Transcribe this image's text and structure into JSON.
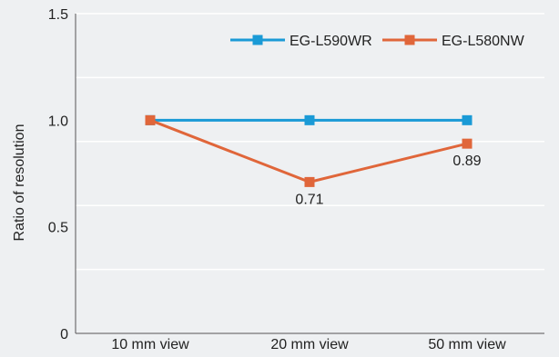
{
  "chart_data": {
    "type": "line",
    "title": "",
    "xlabel": "",
    "ylabel": "Ratio of resolution",
    "categories": [
      "10 mm view",
      "20 mm view",
      "50 mm view"
    ],
    "ylim": [
      0,
      1.5
    ],
    "yticks": [
      0,
      0.5,
      1.0,
      1.5
    ],
    "ytick_labels": [
      "0",
      "0.5",
      "1.0",
      "1.5"
    ],
    "grid": true,
    "legend_position": "top-right",
    "series": [
      {
        "name": "EG-L590WR",
        "values": [
          1.0,
          1.0,
          1.0
        ],
        "color": "#1a9ad6",
        "marker": "square",
        "point_labels": [
          "",
          "",
          ""
        ]
      },
      {
        "name": "EG-L580NW",
        "values": [
          1.0,
          0.71,
          0.89
        ],
        "color": "#e0663a",
        "marker": "square",
        "point_labels": [
          "",
          "0.71",
          "0.89"
        ]
      }
    ]
  },
  "colors": {
    "background": "#eef0f2",
    "gridline": "#ffffff",
    "axis": "#555555",
    "text": "#222222"
  }
}
